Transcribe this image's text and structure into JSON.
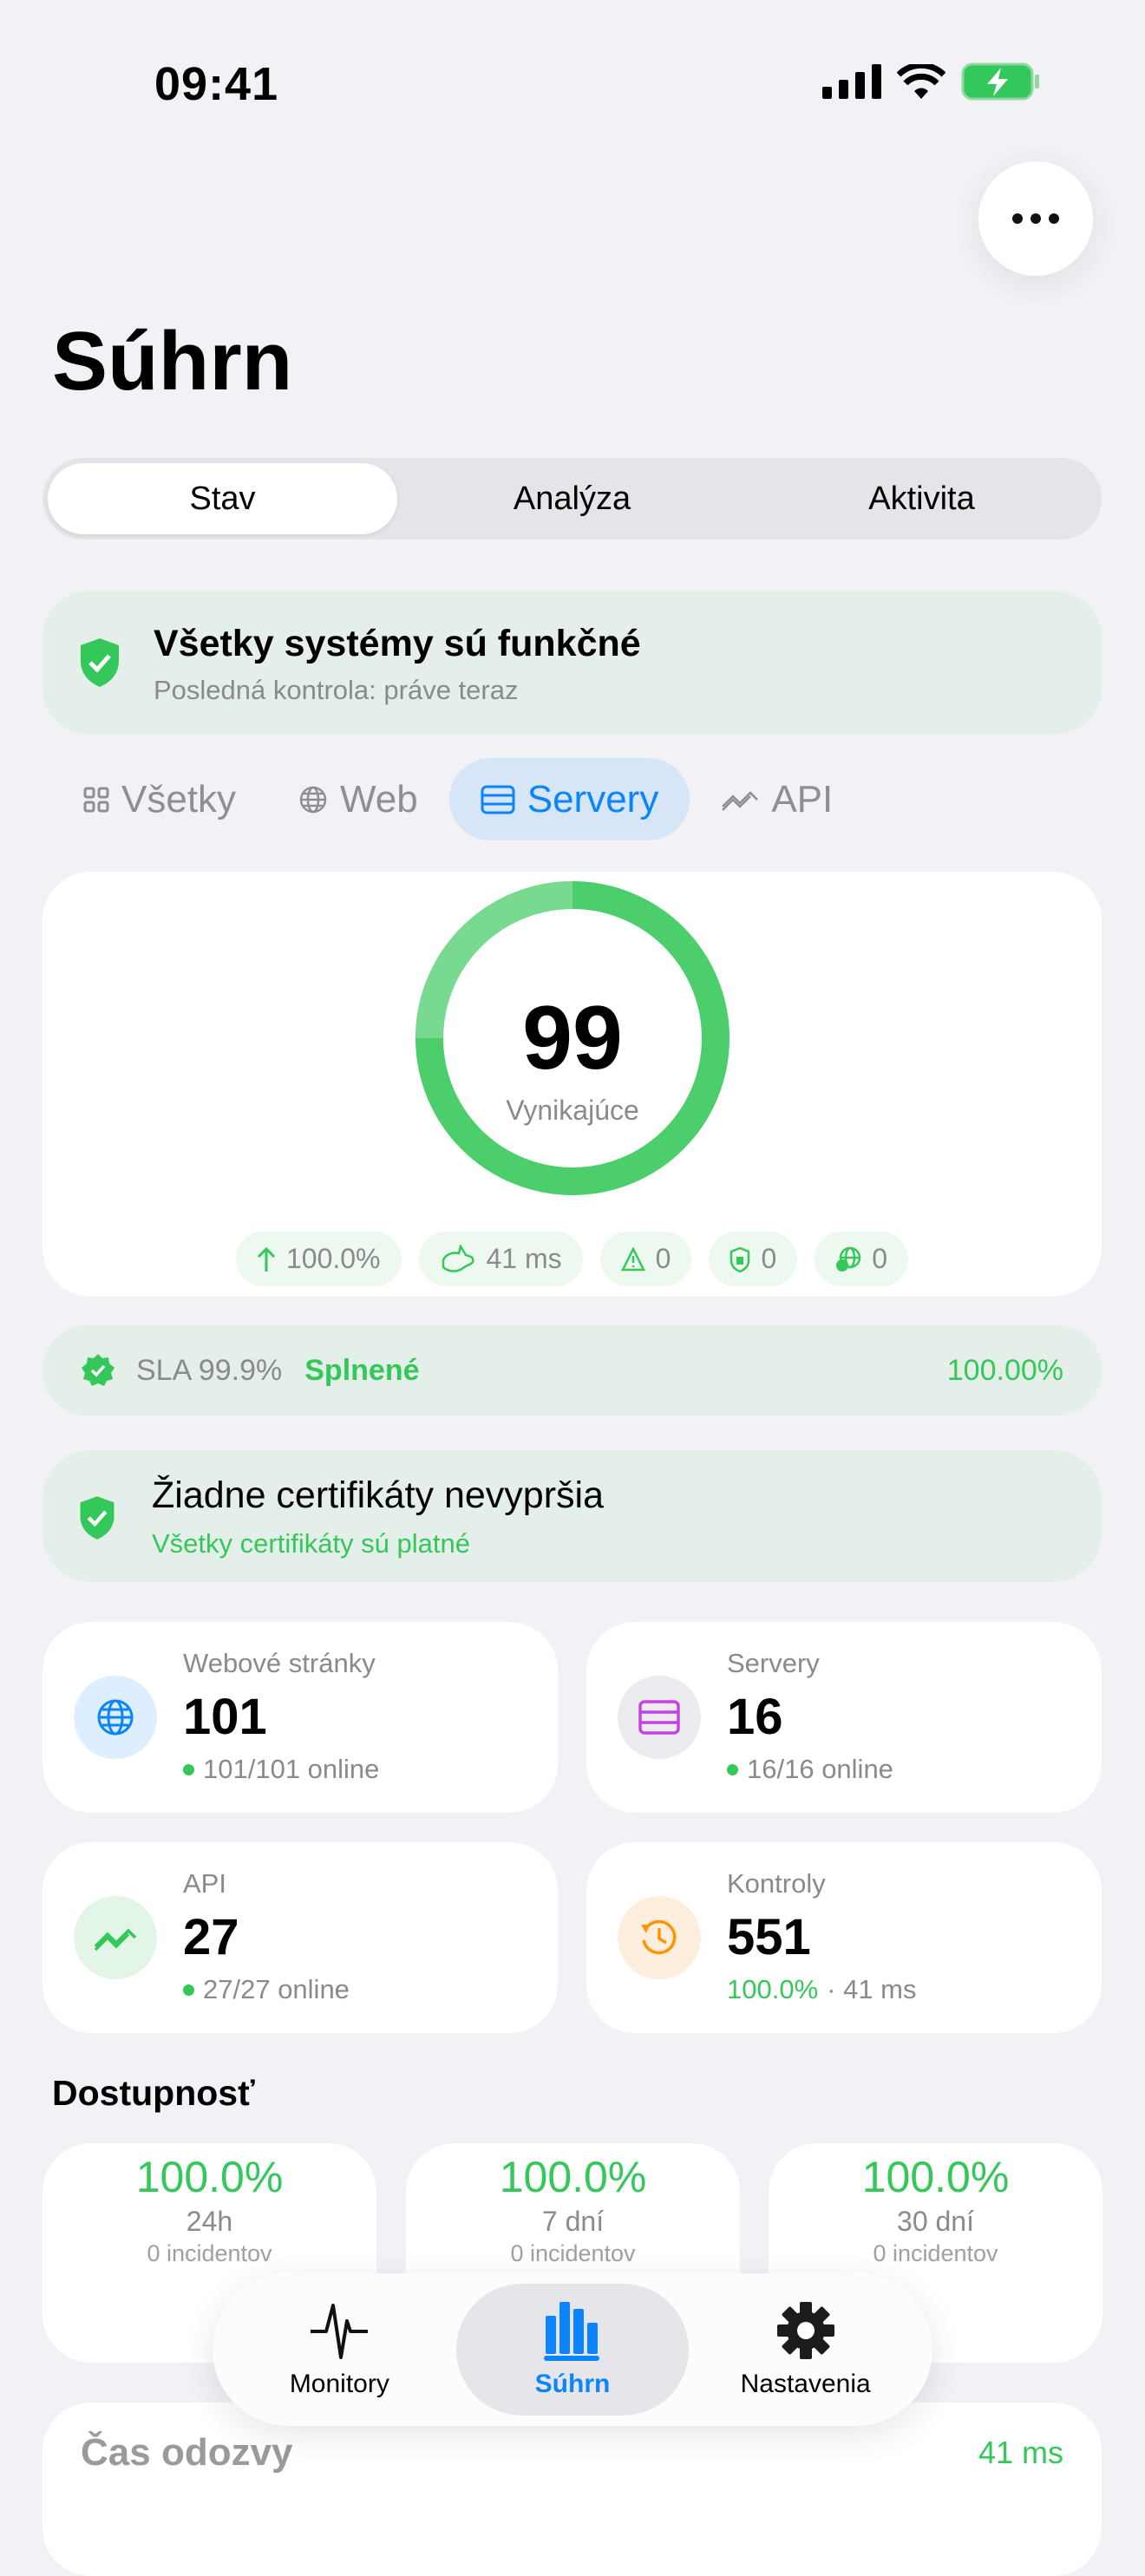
{
  "status_bar": {
    "time": "09:41"
  },
  "header": {
    "title": "Súhrn"
  },
  "segments": [
    {
      "label": "Stav",
      "selected": true
    },
    {
      "label": "Analýza"
    },
    {
      "label": "Aktivita"
    }
  ],
  "banner": {
    "title": "Všetky systémy sú funkčné",
    "subtitle": "Posledná kontrola: práve teraz"
  },
  "filters": [
    {
      "label": "Všetky",
      "icon": "grid-icon"
    },
    {
      "label": "Web",
      "icon": "globe-icon"
    },
    {
      "label": "Servery",
      "icon": "server-icon",
      "selected": true
    },
    {
      "label": "API",
      "icon": "api-icon"
    }
  ],
  "score": {
    "value": "99",
    "label": "Vynikajúce",
    "fill_percent": 99
  },
  "pills": [
    {
      "icon": "arrow-up-icon",
      "value": "100.0%"
    },
    {
      "icon": "rabbit-icon",
      "value": "41 ms"
    },
    {
      "icon": "warning-icon",
      "value": "0"
    },
    {
      "icon": "shield-lock-icon",
      "value": "0"
    },
    {
      "icon": "globe-clock-icon",
      "value": "0"
    }
  ],
  "sla": {
    "label": "SLA 99.9%",
    "status": "Splnené",
    "value": "100.00%"
  },
  "certs": {
    "title": "Žiadne certifikáty nevypršia",
    "subtitle": "Všetky certifikáty sú platné"
  },
  "stats": [
    {
      "label": "Webové stránky",
      "value": "101",
      "sub": "101/101 online"
    },
    {
      "label": "Servery",
      "value": "16",
      "sub": "16/16 online"
    },
    {
      "label": "API",
      "value": "27",
      "sub": "27/27 online"
    },
    {
      "label": "Kontroly",
      "value": "551",
      "sub_green": "100.0%",
      "sub": "· 41 ms"
    }
  ],
  "availability": {
    "title": "Dostupnosť",
    "cards": [
      {
        "percent": "100.0%",
        "period": "24h",
        "sub": "0 incidentov"
      },
      {
        "percent": "100.0%",
        "period": "7 dní",
        "sub": "0 incidentov"
      },
      {
        "percent": "100.0%",
        "period": "30 dní",
        "sub": "0 incidentov"
      }
    ]
  },
  "response": {
    "title": "Čas odozvy",
    "value": "41 ms"
  },
  "tabbar": [
    {
      "label": "Monitory"
    },
    {
      "label": "Súhrn",
      "selected": true
    },
    {
      "label": "Nastavenia"
    }
  ],
  "colors": {
    "green": "#34c759",
    "blue": "#0a84ff",
    "purple": "#c643e0",
    "orange": "#ff9500"
  }
}
